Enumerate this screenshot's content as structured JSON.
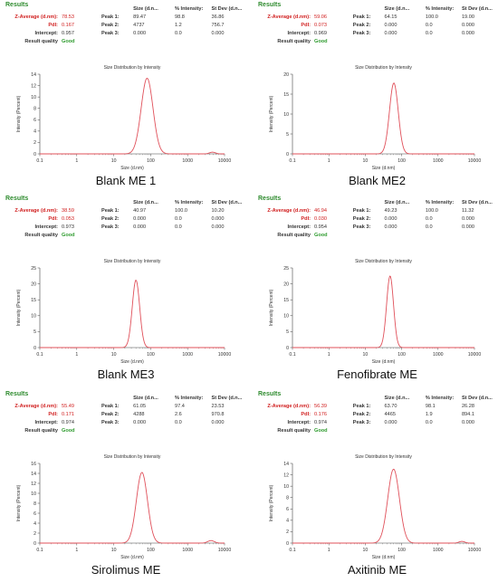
{
  "figure": {
    "panels": [
      {
        "results_label": "Results",
        "caption": "Blank ME 1",
        "stats": {
          "z_average_label": "Z-Average (d.nm):",
          "z_average": "78.53",
          "pdi_label": "PdI:",
          "pdi": "0.167",
          "intercept_label": "Intercept:",
          "intercept": "0.957",
          "quality_label": "Result quality",
          "quality": "Good"
        },
        "peak_headers": [
          "Size (d.n...",
          "% Intensity:",
          "St Dev (d.n..."
        ],
        "peaks": [
          {
            "label": "Peak 1:",
            "size": "89.47",
            "intensity": "98.8",
            "stdev": "36.86"
          },
          {
            "label": "Peak 2:",
            "size": "4737",
            "intensity": "1.2",
            "stdev": "756.7"
          },
          {
            "label": "Peak 3:",
            "size": "0.000",
            "intensity": "0.0",
            "stdev": "0.000"
          }
        ]
      },
      {
        "results_label": "Results",
        "caption": "Blank ME2",
        "stats": {
          "z_average_label": "Z-Average (d.nm):",
          "z_average": "59.06",
          "pdi_label": "PdI:",
          "pdi": "0.073",
          "intercept_label": "Intercept:",
          "intercept": "0.969",
          "quality_label": "Result quality",
          "quality": "Good"
        },
        "peak_headers": [
          "Size (d.n...",
          "% Intensity:",
          "St Dev (d.n..."
        ],
        "peaks": [
          {
            "label": "Peak 1:",
            "size": "64.15",
            "intensity": "100.0",
            "stdev": "19.00"
          },
          {
            "label": "Peak 2:",
            "size": "0.000",
            "intensity": "0.0",
            "stdev": "0.000"
          },
          {
            "label": "Peak 3:",
            "size": "0.000",
            "intensity": "0.0",
            "stdev": "0.000"
          }
        ]
      },
      {
        "results_label": "Results",
        "caption": "Blank ME3",
        "stats": {
          "z_average_label": "Z-Average (d.nm):",
          "z_average": "38.59",
          "pdi_label": "PdI:",
          "pdi": "0.053",
          "intercept_label": "Intercept:",
          "intercept": "0.973",
          "quality_label": "Result quality",
          "quality": "Good"
        },
        "peak_headers": [
          "Size (d.n...",
          "% Intensity:",
          "St Dev (d.n..."
        ],
        "peaks": [
          {
            "label": "Peak 1:",
            "size": "40.97",
            "intensity": "100.0",
            "stdev": "10.20"
          },
          {
            "label": "Peak 2:",
            "size": "0.000",
            "intensity": "0.0",
            "stdev": "0.000"
          },
          {
            "label": "Peak 3:",
            "size": "0.000",
            "intensity": "0.0",
            "stdev": "0.000"
          }
        ]
      },
      {
        "results_label": "Results",
        "caption": "Fenofibrate ME",
        "stats": {
          "z_average_label": "Z-Average (d.nm):",
          "z_average": "46.94",
          "pdi_label": "PdI:",
          "pdi": "0.030",
          "intercept_label": "Intercept:",
          "intercept": "0.954",
          "quality_label": "Result quality",
          "quality": "Good"
        },
        "peak_headers": [
          "Size (d.n...",
          "% Intensity:",
          "St Dev (d.n..."
        ],
        "peaks": [
          {
            "label": "Peak 1:",
            "size": "49.23",
            "intensity": "100.0",
            "stdev": "11.32"
          },
          {
            "label": "Peak 2:",
            "size": "0.000",
            "intensity": "0.0",
            "stdev": "0.000"
          },
          {
            "label": "Peak 3:",
            "size": "0.000",
            "intensity": "0.0",
            "stdev": "0.000"
          }
        ]
      },
      {
        "results_label": "Results",
        "caption": "Sirolimus ME",
        "stats": {
          "z_average_label": "Z-Average (d.nm):",
          "z_average": "55.49",
          "pdi_label": "PdI:",
          "pdi": "0.171",
          "intercept_label": "Intercept:",
          "intercept": "0.974",
          "quality_label": "Result quality",
          "quality": "Good"
        },
        "peak_headers": [
          "Size (d.n...",
          "% Intensity:",
          "St Dev (d.n..."
        ],
        "peaks": [
          {
            "label": "Peak 1:",
            "size": "61.05",
            "intensity": "97.4",
            "stdev": "23.53"
          },
          {
            "label": "Peak 2:",
            "size": "4288",
            "intensity": "2.6",
            "stdev": "970.8"
          },
          {
            "label": "Peak 3:",
            "size": "0.000",
            "intensity": "0.0",
            "stdev": "0.000"
          }
        ]
      },
      {
        "results_label": "Results",
        "caption": "Axitinib ME",
        "stats": {
          "z_average_label": "Z-Average (d.nm):",
          "z_average": "56.39",
          "pdi_label": "PdI:",
          "pdi": "0.176",
          "intercept_label": "Intercept:",
          "intercept": "0.974",
          "quality_label": "Result quality",
          "quality": "Good"
        },
        "peak_headers": [
          "Size (d.n...",
          "% Intensity:",
          "St Dev (d.n..."
        ],
        "peaks": [
          {
            "label": "Peak 1:",
            "size": "63.70",
            "intensity": "98.1",
            "stdev": "26.28"
          },
          {
            "label": "Peak 2:",
            "size": "4465",
            "intensity": "1.9",
            "stdev": "894.1"
          },
          {
            "label": "Peak 3:",
            "size": "0.000",
            "intensity": "0.0",
            "stdev": "0.000"
          }
        ]
      }
    ]
  },
  "colors": {
    "curve": "#e0505a",
    "label_red": "#d12020",
    "good_green": "#2e9b2e",
    "results_green": "#2e8b2e"
  },
  "chart_data": [
    {
      "type": "line",
      "title": "Size Distribution by Intensity",
      "xlabel": "Size (d.nm)",
      "ylabel": "Intensity (Percent)",
      "x_scale": "log",
      "xlim": [
        0.1,
        10000
      ],
      "ylim": [
        0,
        14
      ],
      "x_ticks": [
        "0.1",
        "1",
        "10",
        "100",
        "1000",
        "10000"
      ],
      "y_ticks": [
        "0",
        "2",
        "4",
        "6",
        "8",
        "10",
        "12",
        "14"
      ],
      "grid": false,
      "series": [
        {
          "peaks": [
            {
              "center_nm": 80,
              "height": 13.3,
              "log_width": 0.16
            },
            {
              "center_nm": 4700,
              "height": 0.3,
              "log_width": 0.08
            }
          ]
        }
      ]
    },
    {
      "type": "line",
      "title": "Size Distribution by Intensity",
      "xlabel": "Size (d.nm)",
      "ylabel": "Intensity (Percent)",
      "x_scale": "log",
      "xlim": [
        0.1,
        10000
      ],
      "ylim": [
        0,
        20
      ],
      "x_ticks": [
        "0.1",
        "1",
        "10",
        "100",
        "1000",
        "10000"
      ],
      "y_ticks": [
        "0",
        "5",
        "10",
        "15",
        "20"
      ],
      "grid": false,
      "series": [
        {
          "peaks": [
            {
              "center_nm": 61,
              "height": 17.8,
              "log_width": 0.12
            }
          ]
        }
      ]
    },
    {
      "type": "line",
      "title": "Size Distribution by Intensity",
      "xlabel": "Size (d.nm)",
      "ylabel": "Intensity (Percent)",
      "x_scale": "log",
      "xlim": [
        0.1,
        10000
      ],
      "ylim": [
        0,
        25
      ],
      "x_ticks": [
        "0.1",
        "1",
        "10",
        "100",
        "1000",
        "10000"
      ],
      "y_ticks": [
        "0",
        "5",
        "10",
        "15",
        "20",
        "25"
      ],
      "grid": false,
      "series": [
        {
          "peaks": [
            {
              "center_nm": 40,
              "height": 21.2,
              "log_width": 0.1
            }
          ]
        }
      ]
    },
    {
      "type": "line",
      "title": "Size Distribution by Intensity",
      "xlabel": "Size (d.nm)",
      "ylabel": "Intensity (Percent)",
      "x_scale": "log",
      "xlim": [
        0.1,
        10000
      ],
      "ylim": [
        0,
        25
      ],
      "x_ticks": [
        "0.1",
        "1",
        "10",
        "100",
        "1000",
        "10000"
      ],
      "y_ticks": [
        "0",
        "5",
        "10",
        "15",
        "20",
        "25"
      ],
      "grid": false,
      "series": [
        {
          "peaks": [
            {
              "center_nm": 48,
              "height": 22.5,
              "log_width": 0.095
            }
          ]
        }
      ]
    },
    {
      "type": "line",
      "title": "Size Distribution by Intensity",
      "xlabel": "Size (d.nm)",
      "ylabel": "Intensity (Percent)",
      "x_scale": "log",
      "xlim": [
        0.1,
        10000
      ],
      "ylim": [
        0,
        16
      ],
      "x_ticks": [
        "0.1",
        "1",
        "10",
        "100",
        "1000",
        "10000"
      ],
      "y_ticks": [
        "0",
        "2",
        "4",
        "6",
        "8",
        "10",
        "12",
        "14",
        "16"
      ],
      "grid": false,
      "series": [
        {
          "peaks": [
            {
              "center_nm": 58,
              "height": 14.2,
              "log_width": 0.15
            },
            {
              "center_nm": 4300,
              "height": 0.5,
              "log_width": 0.09
            }
          ]
        }
      ]
    },
    {
      "type": "line",
      "title": "Size Distribution by Intensity",
      "xlabel": "Size (d.nm)",
      "ylabel": "Intensity (Percent)",
      "x_scale": "log",
      "xlim": [
        0.1,
        10000
      ],
      "ylim": [
        0,
        14
      ],
      "x_ticks": [
        "0.1",
        "1",
        "10",
        "100",
        "1000",
        "10000"
      ],
      "y_ticks": [
        "0",
        "2",
        "4",
        "6",
        "8",
        "10",
        "12",
        "14"
      ],
      "grid": false,
      "series": [
        {
          "peaks": [
            {
              "center_nm": 60,
              "height": 13.0,
              "log_width": 0.16
            },
            {
              "center_nm": 4500,
              "height": 0.3,
              "log_width": 0.08
            }
          ]
        }
      ]
    }
  ]
}
